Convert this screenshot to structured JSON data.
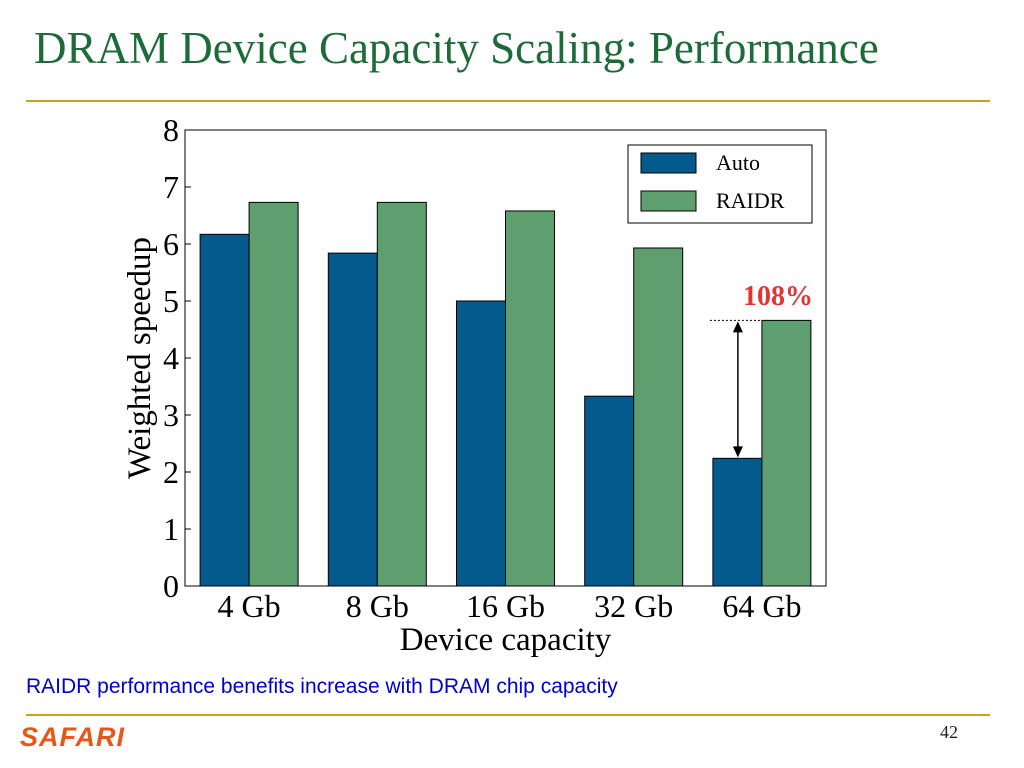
{
  "slide": {
    "title": "DRAM Device Capacity Scaling: Performance",
    "caption": "RAIDR performance benefits increase with DRAM chip capacity",
    "logo": "SAFARI",
    "page_number": "42"
  },
  "colors": {
    "title": "#1e6b3a",
    "rule": "#c8a21e",
    "caption": "#0000cc",
    "logo": "#e8571a",
    "auto": "#045a8d",
    "raidr": "#5f9e6e",
    "annotation": "#e03535"
  },
  "chart_data": {
    "type": "bar",
    "categories": [
      "4 Gb",
      "8 Gb",
      "16 Gb",
      "32 Gb",
      "64 Gb"
    ],
    "series": [
      {
        "name": "Auto",
        "values": [
          6.17,
          5.84,
          5.0,
          3.33,
          2.24
        ]
      },
      {
        "name": "RAIDR",
        "values": [
          6.73,
          6.73,
          6.58,
          5.93,
          4.66
        ]
      }
    ],
    "xlabel": "Device capacity",
    "ylabel": "Weighted speedup",
    "ylim": [
      0,
      8
    ],
    "yticks": [
      0,
      1,
      2,
      3,
      4,
      5,
      6,
      7,
      8
    ],
    "grid": false,
    "legend": "top-right",
    "annotation": {
      "text": "108%",
      "category": "64 Gb",
      "from_value": 2.24,
      "to_value": 4.66
    }
  }
}
